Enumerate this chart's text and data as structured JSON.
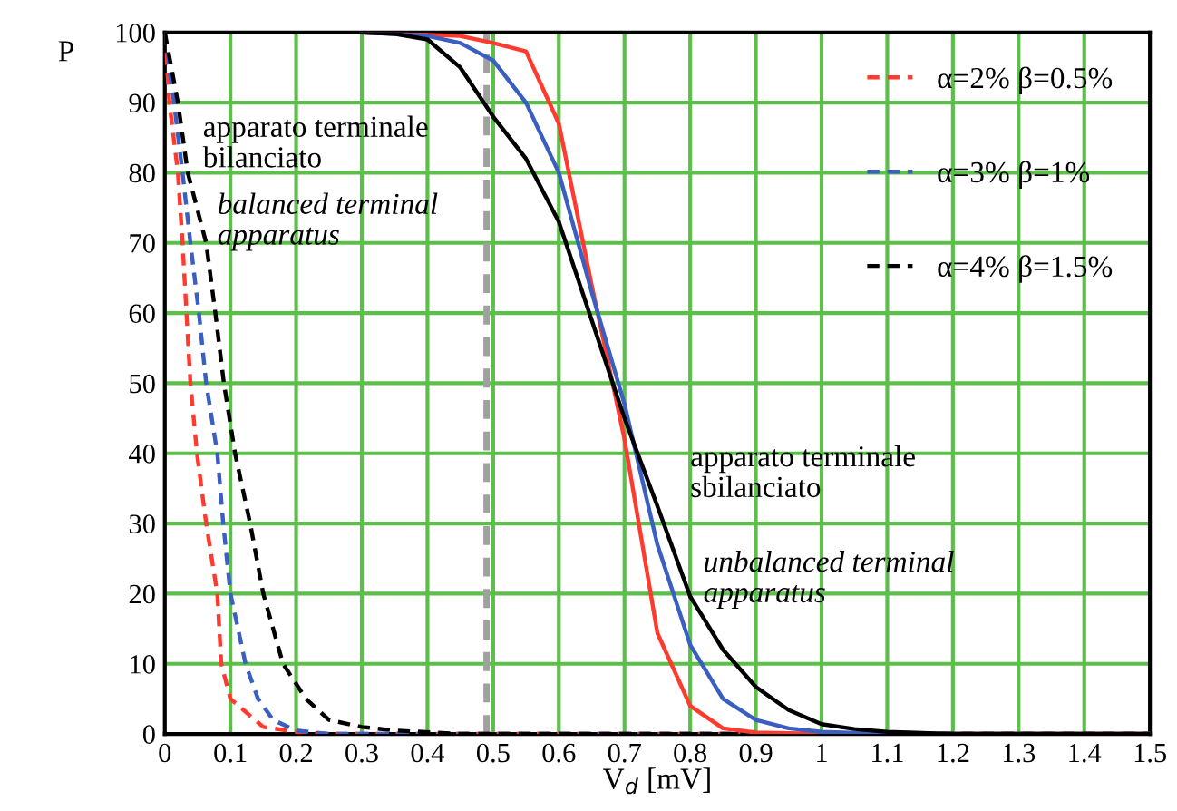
{
  "chart_data": {
    "type": "line",
    "xlabel": "V$_{d}$ [mV]",
    "ylabel": "P",
    "xlim": [
      0,
      1.5
    ],
    "ylim": [
      0,
      100
    ],
    "xticks": [
      0,
      0.1,
      0.2,
      0.3,
      0.4,
      0.5,
      0.6,
      0.7,
      0.8,
      0.9,
      1,
      1.1,
      1.2,
      1.3,
      1.4,
      1.5
    ],
    "yticks": [
      0,
      10,
      20,
      30,
      40,
      50,
      60,
      70,
      80,
      90,
      100
    ],
    "grid": true,
    "legend": "top right",
    "series": [
      {
        "name": "α=2% β=0.5%",
        "color": "#ff3b2f",
        "line_style": "dashed",
        "x": [
          0,
          0.007,
          0.02,
          0.027,
          0.033,
          0.039,
          0.049,
          0.063,
          0.08,
          0.086,
          0.1,
          0.15,
          0.2,
          0.25,
          1.5
        ],
        "values": [
          100,
          90,
          80,
          70,
          60,
          50,
          40,
          30,
          20,
          10,
          5,
          1,
          0.3,
          0,
          0
        ]
      },
      {
        "name": "α=3% β=1%",
        "color": "#3a5fc0",
        "line_style": "dashed",
        "x": [
          0,
          0.014,
          0.027,
          0.039,
          0.052,
          0.063,
          0.08,
          0.089,
          0.1,
          0.123,
          0.142,
          0.165,
          0.2,
          0.25,
          1.5
        ],
        "values": [
          100,
          90,
          80,
          70,
          60,
          50,
          40,
          30,
          20,
          10,
          5,
          2,
          0.5,
          0,
          0
        ]
      },
      {
        "name": "α=4% β=1.5%",
        "color": "#000000",
        "line_style": "dashed",
        "x": [
          0,
          0.02,
          0.035,
          0.063,
          0.077,
          0.09,
          0.107,
          0.13,
          0.15,
          0.18,
          0.215,
          0.25,
          0.3,
          0.35,
          0.45,
          1.5
        ],
        "values": [
          100,
          90,
          80,
          70,
          60,
          50,
          40,
          30,
          20,
          10,
          5,
          2,
          1,
          0.5,
          0,
          0
        ]
      },
      {
        "color": "#ff3b2f",
        "line_style": "solid",
        "x": [
          0.3,
          0.45,
          0.5,
          0.55,
          0.6,
          0.65,
          0.7,
          0.75,
          0.8,
          0.85,
          0.9,
          1.0,
          1.5
        ],
        "values": [
          100,
          99.5,
          98.5,
          97.3,
          87,
          64,
          42,
          14.4,
          4,
          0.8,
          0.2,
          0,
          0
        ]
      },
      {
        "color": "#3a5fc0",
        "line_style": "solid",
        "x": [
          0.3,
          0.4,
          0.45,
          0.5,
          0.55,
          0.6,
          0.65,
          0.7,
          0.75,
          0.8,
          0.85,
          0.9,
          0.95,
          1.0,
          1.1,
          1.5
        ],
        "values": [
          100,
          99.5,
          98.5,
          96,
          90,
          80,
          63,
          47,
          27,
          12.7,
          5,
          2,
          0.8,
          0.3,
          0,
          0
        ]
      },
      {
        "color": "#000000",
        "line_style": "solid",
        "x": [
          0.3,
          0.35,
          0.4,
          0.45,
          0.5,
          0.55,
          0.6,
          0.65,
          0.7,
          0.75,
          0.8,
          0.85,
          0.9,
          0.95,
          1.0,
          1.05,
          1.1,
          1.2,
          1.5
        ],
        "values": [
          100,
          99.8,
          99,
          95,
          88,
          82,
          73,
          59,
          45,
          32.5,
          19.6,
          12,
          6.7,
          3.4,
          1.4,
          0.7,
          0.3,
          0,
          0
        ]
      }
    ],
    "ref_lines": [
      {
        "axis": "x",
        "value": 0.49,
        "color": "#a0a0a0",
        "line_style": "dashed"
      }
    ],
    "annotations": [
      "apparato terminale\nbilanciato",
      "balanced terminal\napparatus",
      "apparato terminale\nsbilanciato",
      "unbalanced terminal\napparatus"
    ]
  }
}
